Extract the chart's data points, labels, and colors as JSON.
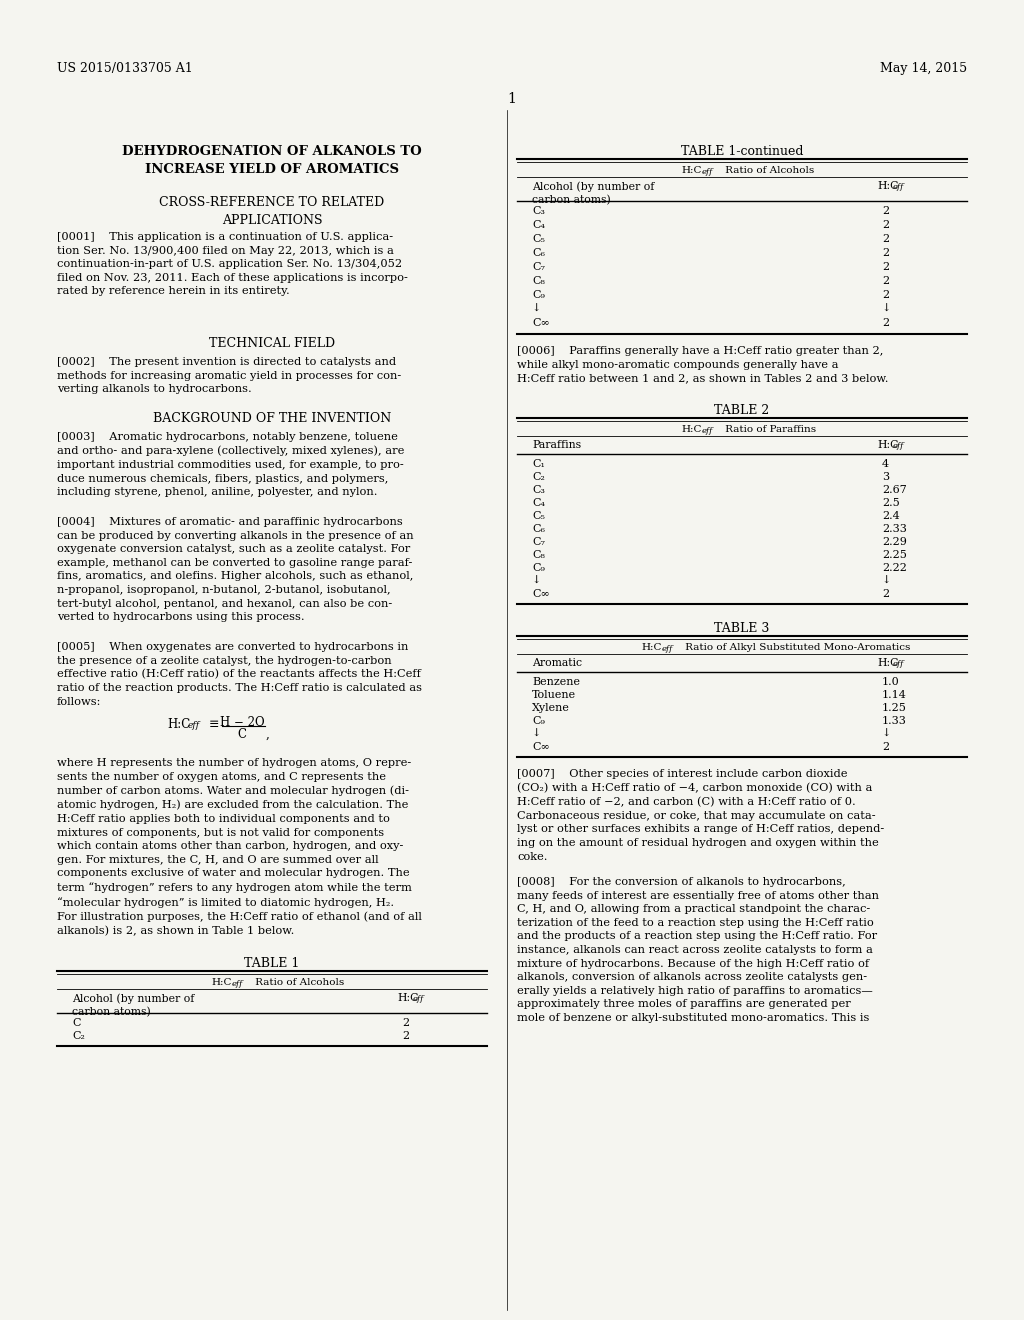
{
  "bg_color": "#f5f5f0",
  "header_left": "US 2015/0133705 A1",
  "header_right": "May 14, 2015",
  "page_number": "1",
  "table1cont_rows": [
    [
      "C₃",
      "2"
    ],
    [
      "C₄",
      "2"
    ],
    [
      "C₅",
      "2"
    ],
    [
      "C₆",
      "2"
    ],
    [
      "C₇",
      "2"
    ],
    [
      "C₈",
      "2"
    ],
    [
      "C₉",
      "2"
    ],
    [
      "↓",
      "↓"
    ],
    [
      "C∞",
      "2"
    ]
  ],
  "table2_rows": [
    [
      "C₁",
      "4"
    ],
    [
      "C₂",
      "3"
    ],
    [
      "C₃",
      "2.67"
    ],
    [
      "C₄",
      "2.5"
    ],
    [
      "C₅",
      "2.4"
    ],
    [
      "C₆",
      "2.33"
    ],
    [
      "C₇",
      "2.29"
    ],
    [
      "C₈",
      "2.25"
    ],
    [
      "C₉",
      "2.22"
    ],
    [
      "↓",
      "↓"
    ],
    [
      "C∞",
      "2"
    ]
  ],
  "table3_rows": [
    [
      "Benzene",
      "1.0"
    ],
    [
      "Toluene",
      "1.14"
    ],
    [
      "Xylene",
      "1.25"
    ],
    [
      "C₉",
      "1.33"
    ],
    [
      "↓",
      "↓"
    ],
    [
      "C∞",
      "2"
    ]
  ]
}
